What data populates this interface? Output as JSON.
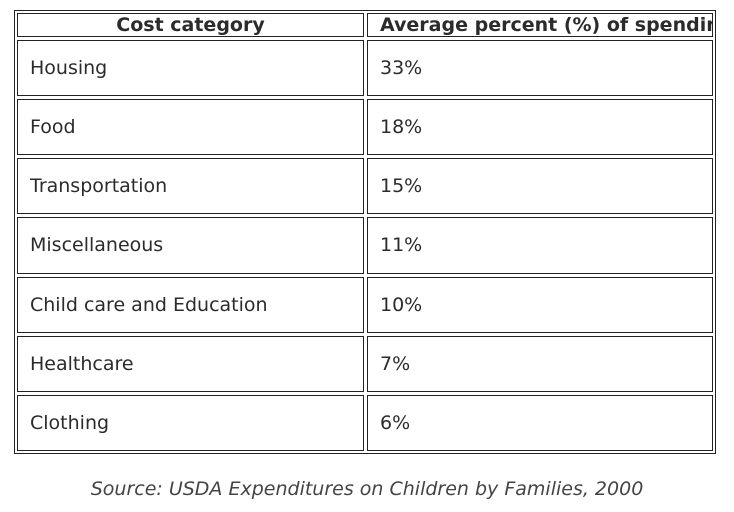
{
  "table": {
    "headers": [
      "Cost category",
      "Average percent (%) of spending"
    ],
    "rows": [
      [
        "Housing",
        "33%"
      ],
      [
        "Food",
        "18%"
      ],
      [
        "Transportation",
        "15%"
      ],
      [
        "Miscellaneous",
        "11%"
      ],
      [
        "Child care and Education",
        "10%"
      ],
      [
        "Healthcare",
        "7%"
      ],
      [
        "Clothing",
        "6%"
      ]
    ]
  },
  "source": "Source: USDA Expenditures on Children by Families, 2000"
}
